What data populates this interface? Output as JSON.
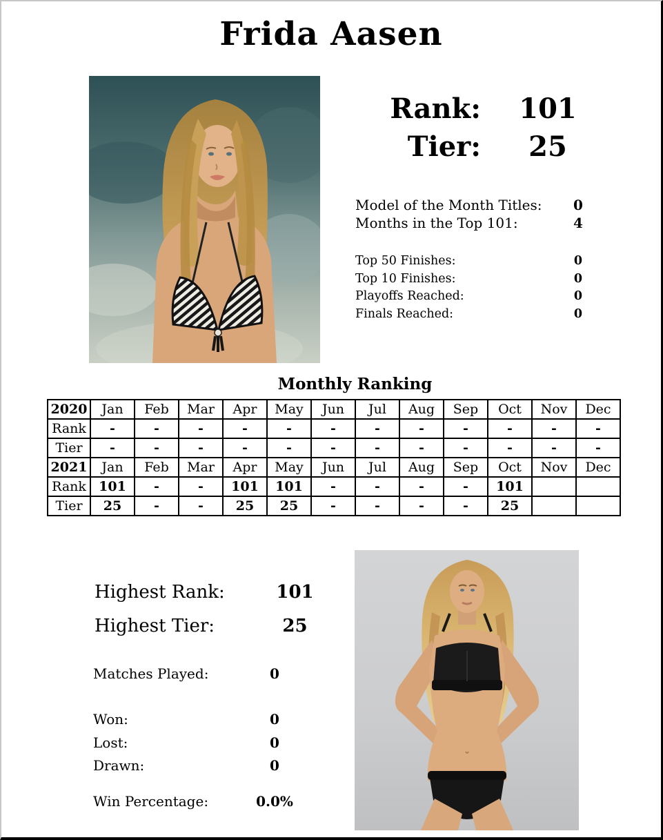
{
  "title": "Frida Aasen",
  "summary": {
    "rank_label": "Rank:",
    "rank_value": "101",
    "tier_label": "Tier:",
    "tier_value": "25"
  },
  "career_stats": [
    {
      "label": "Model of the Month Titles:",
      "value": "0"
    },
    {
      "label": "Months in the Top 101:",
      "value": "4"
    }
  ],
  "finish_stats": [
    {
      "label": "Top 50 Finishes:",
      "value": "0"
    },
    {
      "label": "Top 10 Finishes:",
      "value": "0"
    },
    {
      "label": "Playoffs Reached:",
      "value": "0"
    },
    {
      "label": "Finals Reached:",
      "value": "0"
    }
  ],
  "monthly_ranking": {
    "title": "Monthly Ranking",
    "months": [
      "Jan",
      "Feb",
      "Mar",
      "Apr",
      "May",
      "Jun",
      "Jul",
      "Aug",
      "Sep",
      "Oct",
      "Nov",
      "Dec"
    ],
    "rank_row_label": "Rank",
    "tier_row_label": "Tier",
    "years": [
      {
        "year": "2020",
        "rank": [
          "-",
          "-",
          "-",
          "-",
          "-",
          "-",
          "-",
          "-",
          "-",
          "-",
          "-",
          "-"
        ],
        "tier": [
          "-",
          "-",
          "-",
          "-",
          "-",
          "-",
          "-",
          "-",
          "-",
          "-",
          "-",
          "-"
        ]
      },
      {
        "year": "2021",
        "rank": [
          "101",
          "-",
          "-",
          "101",
          "101",
          "-",
          "-",
          "-",
          "-",
          "101",
          "",
          ""
        ],
        "tier": [
          "25",
          "-",
          "-",
          "25",
          "25",
          "-",
          "-",
          "-",
          "-",
          "25",
          "",
          ""
        ]
      }
    ]
  },
  "highlights": [
    {
      "label": "Highest Rank:",
      "value": "101"
    },
    {
      "label": "Highest Tier:",
      "value": "25"
    }
  ],
  "match_stats": {
    "matches_played": {
      "label": "Matches Played:",
      "value": "0"
    },
    "won": {
      "label": "Won:",
      "value": "0"
    },
    "lost": {
      "label": "Lost:",
      "value": "0"
    },
    "drawn": {
      "label": "Drawn:",
      "value": "0"
    },
    "win_percentage": {
      "label": "Win Percentage:",
      "value": "0.0%"
    }
  },
  "photos": {
    "main_description": "beach portrait in patterned bikini",
    "secondary_description": "studio full-body in black two-piece"
  },
  "colors": {
    "text": "#000000",
    "page_background": "#ffffff",
    "border_dark": "#000000",
    "border_light": "#c6c6c6"
  }
}
